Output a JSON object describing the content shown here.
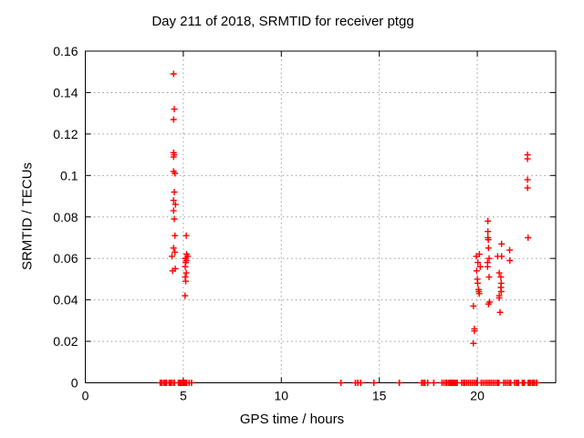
{
  "chart_data": {
    "type": "scatter",
    "title": "Day 211 of 2018, SRMTID for receiver ptgg",
    "xlabel": "GPS time / hours",
    "ylabel": "SRMTID / TECUs",
    "xlim": [
      0,
      24
    ],
    "ylim": [
      0,
      0.16
    ],
    "x_ticks": [
      0,
      5,
      10,
      15,
      20
    ],
    "x_tick_labels": [
      "0",
      "5",
      "10",
      "15",
      "20"
    ],
    "y_ticks": [
      0,
      0.02,
      0.04,
      0.06,
      0.08,
      0.1,
      0.12,
      0.14,
      0.16
    ],
    "y_tick_labels": [
      "0",
      "0.02",
      "0.04",
      "0.06",
      "0.08",
      "0.1",
      "0.12",
      "0.14",
      "0.16"
    ],
    "grid": true,
    "legend_position": "none",
    "marker": {
      "shape": "plus",
      "color": "#ff0000",
      "size": 7
    },
    "colors": {
      "marker": "#ff0000",
      "grid": "#9c9c9c",
      "axis": "#000000",
      "background": "#ffffff"
    },
    "series": [
      {
        "name": "SRMTID",
        "points": [
          [
            4.5,
            0.149
          ],
          [
            4.54,
            0.132
          ],
          [
            4.5,
            0.127
          ],
          [
            4.5,
            0.111
          ],
          [
            4.53,
            0.11
          ],
          [
            4.5,
            0.109
          ],
          [
            4.5,
            0.102
          ],
          [
            4.57,
            0.101
          ],
          [
            4.54,
            0.092
          ],
          [
            4.5,
            0.088
          ],
          [
            4.6,
            0.086
          ],
          [
            4.5,
            0.083
          ],
          [
            4.54,
            0.079
          ],
          [
            4.57,
            0.071
          ],
          [
            4.5,
            0.065
          ],
          [
            4.57,
            0.063
          ],
          [
            4.42,
            0.061
          ],
          [
            4.59,
            0.055
          ],
          [
            4.45,
            0.054
          ],
          [
            5.15,
            0.071
          ],
          [
            5.17,
            0.062
          ],
          [
            5.23,
            0.061
          ],
          [
            5.1,
            0.06
          ],
          [
            5.15,
            0.059
          ],
          [
            5.12,
            0.058
          ],
          [
            5.1,
            0.056
          ],
          [
            5.15,
            0.053
          ],
          [
            5.1,
            0.051
          ],
          [
            5.12,
            0.049
          ],
          [
            5.09,
            0.042
          ],
          [
            20.54,
            0.078
          ],
          [
            20.54,
            0.073
          ],
          [
            20.54,
            0.07
          ],
          [
            20.56,
            0.069
          ],
          [
            21.24,
            0.067
          ],
          [
            20.57,
            0.065
          ],
          [
            21.65,
            0.064
          ],
          [
            20.11,
            0.062
          ],
          [
            19.95,
            0.061
          ],
          [
            21.24,
            0.061
          ],
          [
            21.04,
            0.061
          ],
          [
            20.6,
            0.06
          ],
          [
            21.66,
            0.059
          ],
          [
            20.03,
            0.058
          ],
          [
            20.52,
            0.058
          ],
          [
            20.15,
            0.056
          ],
          [
            20.52,
            0.056
          ],
          [
            19.97,
            0.054
          ],
          [
            21.12,
            0.053
          ],
          [
            20.6,
            0.051
          ],
          [
            21.2,
            0.051
          ],
          [
            20.0,
            0.05
          ],
          [
            20.02,
            0.048
          ],
          [
            21.22,
            0.048
          ],
          [
            21.2,
            0.046
          ],
          [
            20.06,
            0.045
          ],
          [
            21.22,
            0.044
          ],
          [
            20.08,
            0.044
          ],
          [
            20.1,
            0.043
          ],
          [
            21.12,
            0.042
          ],
          [
            21.12,
            0.041
          ],
          [
            20.63,
            0.039
          ],
          [
            20.57,
            0.038
          ],
          [
            19.8,
            0.037
          ],
          [
            21.16,
            0.034
          ],
          [
            19.85,
            0.026
          ],
          [
            19.85,
            0.025
          ],
          [
            19.8,
            0.019
          ],
          [
            22.56,
            0.11
          ],
          [
            22.56,
            0.108
          ],
          [
            22.56,
            0.098
          ],
          [
            22.56,
            0.094
          ],
          [
            22.59,
            0.07
          ]
        ],
        "zero_line_x": [
          3.82,
          3.9,
          4.0,
          4.08,
          4.15,
          4.28,
          4.33,
          4.4,
          4.5,
          4.55,
          4.75,
          4.8,
          4.85,
          4.9,
          4.95,
          5.0,
          5.05,
          5.1,
          5.17,
          5.3,
          5.42,
          13.04,
          13.78,
          13.9,
          14.05,
          14.72,
          16.02,
          17.16,
          17.25,
          17.33,
          17.47,
          17.78,
          18.2,
          18.3,
          18.4,
          18.45,
          18.55,
          18.6,
          18.65,
          18.7,
          18.75,
          18.8,
          18.85,
          18.9,
          18.97,
          19.2,
          19.3,
          19.35,
          19.45,
          19.55,
          19.65,
          19.75,
          19.85,
          19.95,
          20.0,
          20.2,
          20.3,
          20.4,
          20.5,
          20.6,
          20.7,
          20.8,
          20.9,
          21.0,
          21.05,
          21.1,
          21.35,
          21.45,
          21.55,
          21.65,
          21.7,
          21.9,
          22.0,
          22.05,
          22.1,
          22.3,
          22.35,
          22.4,
          22.6,
          22.65,
          22.7,
          22.8,
          22.85,
          22.9,
          23.0,
          23.04
        ]
      }
    ]
  }
}
